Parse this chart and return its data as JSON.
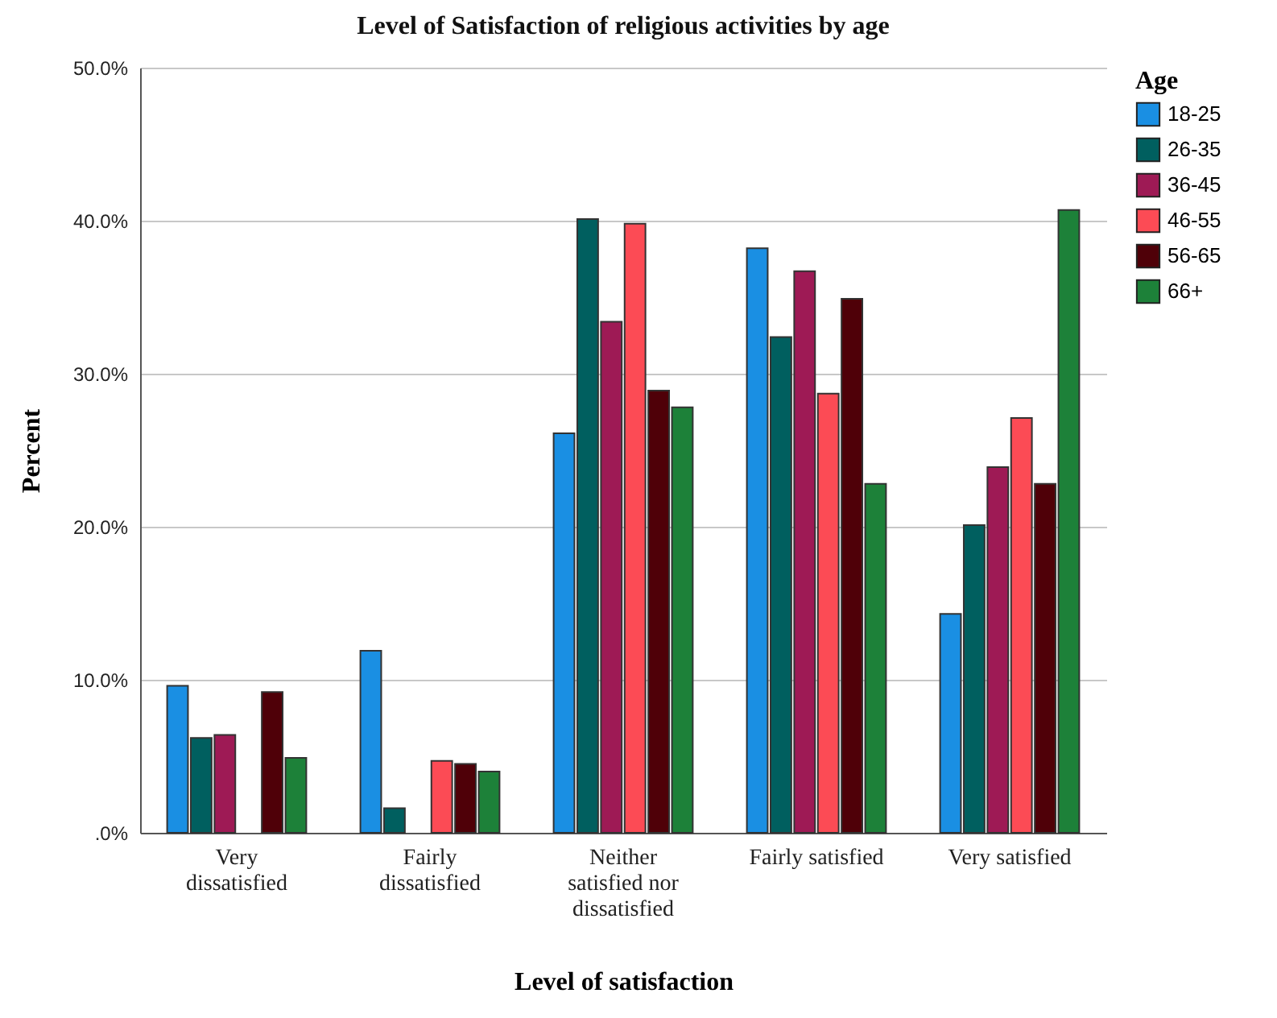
{
  "chart_data": {
    "type": "bar",
    "title": "Level of Satisfaction of religious activities by age",
    "xlabel": "Level of satisfaction",
    "ylabel": "Percent",
    "legend_title": "Age",
    "categories": [
      "Very dissatisfied",
      "Fairly dissatisfied",
      "Neither satisfied nor dissatisfied",
      "Fairly satisfied",
      "Very satisfied"
    ],
    "series": [
      {
        "name": "18-25",
        "color": "#1a8fe3",
        "values": [
          9.6,
          11.9,
          26.1,
          38.2,
          14.3
        ]
      },
      {
        "name": "26-35",
        "color": "#005f5f",
        "values": [
          6.2,
          1.6,
          40.1,
          32.4,
          20.1
        ]
      },
      {
        "name": "36-45",
        "color": "#9e1a55",
        "values": [
          6.4,
          null,
          33.4,
          36.7,
          23.9
        ]
      },
      {
        "name": "46-55",
        "color": "#fc4b55",
        "values": [
          null,
          4.7,
          39.8,
          28.7,
          27.1
        ]
      },
      {
        "name": "56-65",
        "color": "#4f0008",
        "values": [
          9.2,
          4.5,
          28.9,
          34.9,
          22.8
        ]
      },
      {
        "name": "66+",
        "color": "#1d8139",
        "values": [
          4.9,
          4.0,
          27.8,
          22.8,
          40.7
        ]
      }
    ],
    "ylim": [
      0,
      50
    ],
    "yticks": [
      {
        "value": 0,
        "label": ".0%"
      },
      {
        "value": 10,
        "label": "10.0%"
      },
      {
        "value": 20,
        "label": "20.0%"
      },
      {
        "value": 30,
        "label": "30.0%"
      },
      {
        "value": 40,
        "label": "40.0%"
      },
      {
        "value": 50,
        "label": "50.0%"
      }
    ],
    "grid": "y",
    "legend": "right"
  }
}
